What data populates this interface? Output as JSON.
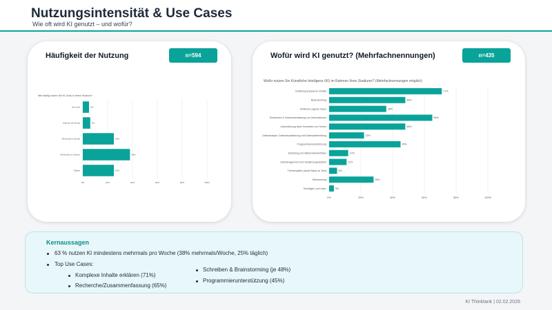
{
  "header": {
    "title": "Nutzungsintensität & Use Cases",
    "subtitle": "Wie oft wird KI genutzt – und wofür?"
  },
  "left_card": {
    "title": "Häufigkeit der Nutzung",
    "badge": "n=594"
  },
  "right_card": {
    "title": "Wofür wird KI genutzt? (Mehrfachnennungen)",
    "badge": "n=435"
  },
  "chart_data": [
    {
      "type": "bar",
      "orientation": "horizontal",
      "title": "Wie häufig nutzen Sie KI-Tools in Ihrem Studium?",
      "categories": [
        "Gar nicht",
        "Seltener als Monat",
        "Mehrmals im Monat",
        "Mehrmals pro Woche",
        "Täglich"
      ],
      "values": [
        5,
        6,
        25,
        38,
        25
      ],
      "value_labels": [
        "5%",
        "6%",
        "25%",
        "38%",
        "25%"
      ],
      "xticks": [
        "0%",
        "20%",
        "40%",
        "60%",
        "80%",
        "100%"
      ],
      "xlim": [
        0,
        100
      ],
      "grid": true
    },
    {
      "type": "bar",
      "orientation": "horizontal",
      "title": "Wofür nutzen Sie Künstliche Intelligenz (KI) im Rahmen Ihres Studiums? (Mehrfachnennungen möglich)",
      "categories": [
        "Erklärung komplexer Inhalte",
        "Brainstorming",
        "Reflexion eigener Ideen",
        "Recherche & Zusammenfassung von Informationen",
        "Unterstützung beim Schreiben von Texten",
        "Datenanalyse, Datenvisualisierung und Datenaufbereitung",
        "Programmierunterstützung",
        "Erstellung von Bildern/Audio/Video",
        "Zeitmanagement und Studienorganisation",
        "Themenpläne (Ausbl Maus zu Text)",
        "Übersetzung",
        "Sonstiges, und zwar:"
      ],
      "values": [
        71,
        48,
        36,
        65,
        48,
        22,
        45,
        12,
        11,
        5,
        28,
        3
      ],
      "value_labels": [
        "71%",
        "48%",
        "36%",
        "65%",
        "48%",
        "22%",
        "45%",
        "12%",
        "11%",
        "5%",
        "28%",
        "3%"
      ],
      "xticks": [
        "0%",
        "20%",
        "40%",
        "60%",
        "80%",
        "100%"
      ],
      "xlim": [
        0,
        100
      ],
      "grid": true
    }
  ],
  "key_points": {
    "title": "Kernaussagen",
    "points": [
      "63 % nutzen KI mindestens mehrmals pro Woche (38% mehrmals/Woche, 25% täglich)",
      "Top Use Cases:"
    ],
    "use_cases_left": [
      "Komplexe Inhalte erklären (71%)",
      "Recherche/Zusammenfassung (65%)"
    ],
    "use_cases_right": [
      "Schreiben & Brainstorming (je 48%)",
      "Programmierunterstützung (45%)"
    ]
  },
  "footer": "KI Thinktank | 02.02.2026",
  "colors": {
    "accent": "#0aa39a",
    "bar": "#0aa39a"
  }
}
